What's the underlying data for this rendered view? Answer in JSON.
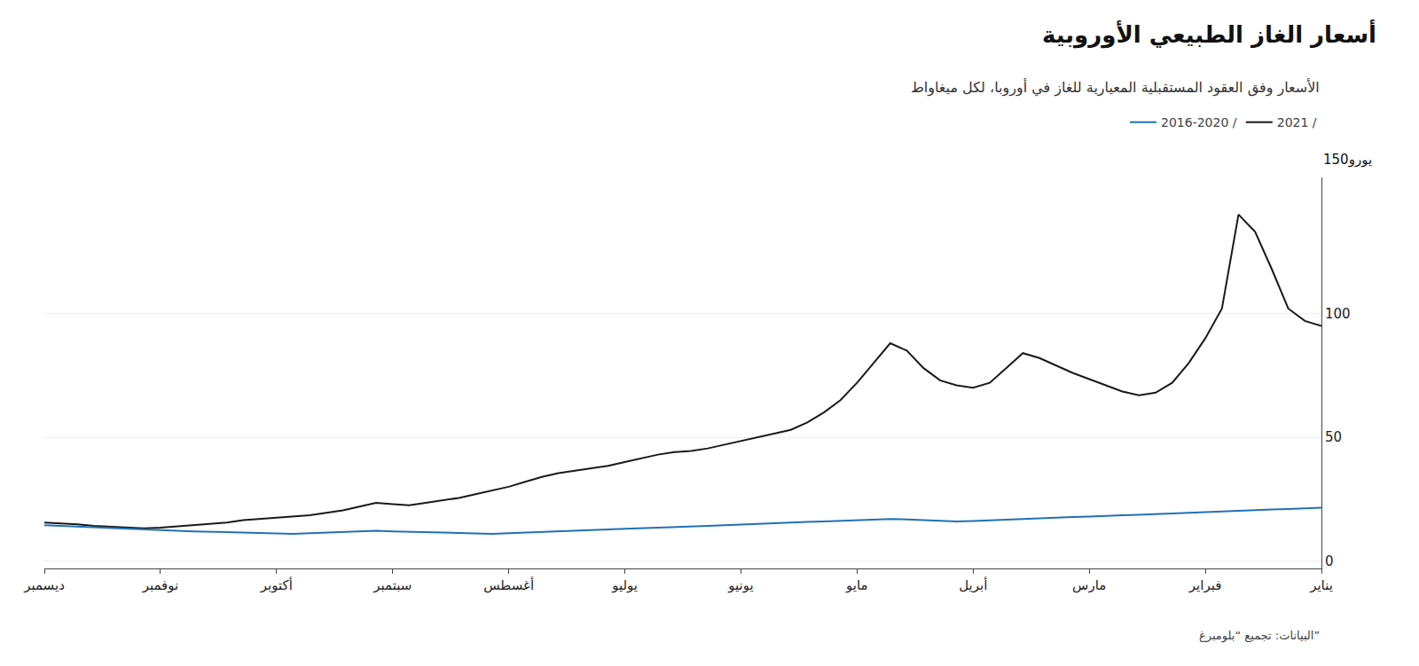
{
  "chart_data": {
    "type": "line",
    "title": "أسعار الغاز الطبيعي الأوروبية",
    "subtitle": "الأسعار وفق العقود المستقبلية المعيارية للغاز في أوروبا، لكل ميغاواط",
    "ylabel": "150يورو",
    "annotations": [
      "البيانات: تجميع “بلومبرغ”"
    ],
    "categories": [
      "ديسمبر",
      null,
      null,
      null,
      null,
      null,
      null,
      "نوفمبر",
      null,
      null,
      null,
      null,
      null,
      null,
      "أكتوبر",
      null,
      null,
      null,
      null,
      null,
      null,
      "سبتمبر",
      null,
      null,
      null,
      null,
      null,
      null,
      "أغسطس",
      null,
      null,
      null,
      null,
      null,
      null,
      "يوليو",
      null,
      null,
      null,
      null,
      null,
      null,
      "يونيو",
      null,
      null,
      null,
      null,
      null,
      null,
      "مايو",
      null,
      null,
      null,
      null,
      null,
      null,
      "أبريل",
      null,
      null,
      null,
      null,
      null,
      null,
      "مارس",
      null,
      null,
      null,
      null,
      null,
      null,
      "فبراير",
      null,
      null,
      null,
      null,
      null,
      null,
      "يناير"
    ],
    "series": [
      {
        "name": "2021 /",
        "color": "#1a1a1a",
        "values": [
          15.5,
          15.2,
          14.8,
          14.2,
          13.8,
          13.5,
          13.2,
          13.5,
          14.0,
          14.5,
          15.0,
          15.5,
          16.5,
          17.0,
          17.5,
          18.0,
          18.5,
          19.5,
          20.5,
          22.0,
          23.5,
          23.0,
          22.5,
          23.5,
          24.5,
          25.5,
          27.0,
          28.5,
          30.0,
          32.0,
          34.0,
          35.5,
          36.5,
          37.5,
          38.5,
          40.0,
          41.5,
          43.0,
          44.0,
          44.5,
          45.5,
          47.0,
          48.5,
          50.0,
          51.5,
          53.0,
          56.0,
          60.0,
          65.0,
          72.0,
          80.0,
          88.0,
          85.0,
          78.0,
          73.0,
          71.0,
          70.0,
          72.0,
          78.0,
          84.0,
          82.0,
          79.0,
          76.0,
          73.5,
          71.0,
          68.5,
          67.0,
          68.0,
          72.0,
          80.0,
          90.0,
          102.0,
          140.0,
          133.0,
          118.0,
          102.0,
          97.0,
          95.0
        ]
      },
      {
        "name": "2016-2020 /",
        "color": "#2171b5",
        "values": [
          14.5,
          14.2,
          13.8,
          13.5,
          13.2,
          13.0,
          12.8,
          12.5,
          12.2,
          12.0,
          11.8,
          11.6,
          11.4,
          11.2,
          11.0,
          11.0,
          11.2,
          11.5,
          11.8,
          12.0,
          12.2,
          12.0,
          11.8,
          11.6,
          11.4,
          11.2,
          11.0,
          11.0,
          11.2,
          11.5,
          11.8,
          12.0,
          12.2,
          12.5,
          12.8,
          13.0,
          13.2,
          13.5,
          13.8,
          14.0,
          14.2,
          14.5,
          14.8,
          15.0,
          15.2,
          15.5,
          15.8,
          16.0,
          16.2,
          16.5,
          16.8,
          17.0,
          16.8,
          16.5,
          16.2,
          16.0,
          16.2,
          16.5,
          16.8,
          17.0,
          17.2,
          17.5,
          17.8,
          18.0,
          18.2,
          18.5,
          18.8,
          19.0,
          19.2,
          19.5,
          19.8,
          20.0,
          20.2,
          20.5,
          20.8,
          21.0,
          21.2,
          21.5
        ]
      }
    ],
    "ylim": [
      -3,
      155
    ],
    "yticks": [
      0,
      50,
      100
    ],
    "grid": true,
    "legend": "top right"
  }
}
